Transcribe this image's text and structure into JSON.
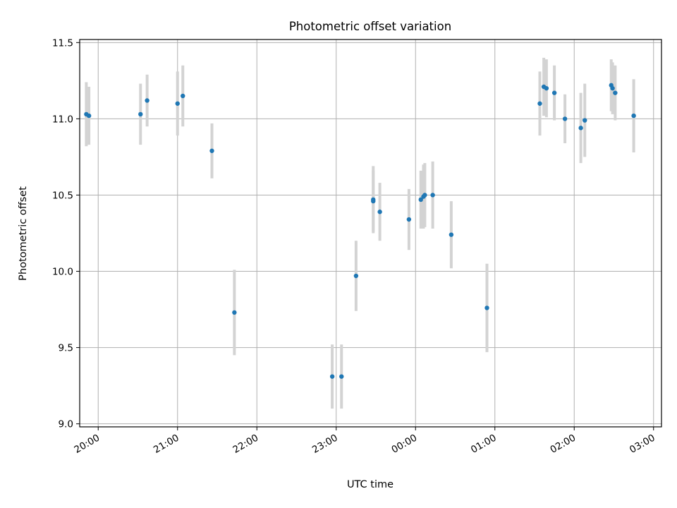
{
  "chart_data": {
    "type": "scatter",
    "title": "Photometric offset variation",
    "xlabel": "UTC time",
    "ylabel": "Photometric offset",
    "grid": true,
    "x_ticks": [
      "20:00",
      "21:00",
      "22:00",
      "23:00",
      "00:00",
      "01:00",
      "02:00",
      "03:00"
    ],
    "y_ticks": [
      "9.0",
      "9.5",
      "10.0",
      "10.5",
      "11.0",
      "11.5"
    ],
    "ylim": [
      8.98,
      11.52
    ],
    "xlim": [
      "19:46",
      "03:06"
    ],
    "colors": {
      "points": "#1f77b4",
      "errorbars": "#d3d3d3",
      "grid": "#b0b0b0"
    },
    "points": [
      {
        "x": "19:51",
        "y": 11.03,
        "yerr": 0.21
      },
      {
        "x": "19:53",
        "y": 11.02,
        "yerr": 0.19
      },
      {
        "x": "20:32",
        "y": 11.03,
        "yerr": 0.2
      },
      {
        "x": "20:37",
        "y": 11.12,
        "yerr": 0.17
      },
      {
        "x": "21:00",
        "y": 11.1,
        "yerr": 0.21
      },
      {
        "x": "21:04",
        "y": 11.15,
        "yerr": 0.2
      },
      {
        "x": "21:26",
        "y": 10.79,
        "yerr": 0.18
      },
      {
        "x": "21:43",
        "y": 9.73,
        "yerr": 0.28
      },
      {
        "x": "22:57",
        "y": 9.31,
        "yerr": 0.21
      },
      {
        "x": "23:04",
        "y": 9.31,
        "yerr": 0.21
      },
      {
        "x": "23:15",
        "y": 9.97,
        "yerr": 0.23
      },
      {
        "x": "23:28",
        "y": 10.47,
        "yerr": 0.22
      },
      {
        "x": "23:28",
        "y": 10.46,
        "yerr": 0.2
      },
      {
        "x": "23:33",
        "y": 10.39,
        "yerr": 0.19
      },
      {
        "x": "23:55",
        "y": 10.34,
        "yerr": 0.2
      },
      {
        "x": "00:04",
        "y": 10.47,
        "yerr": 0.19
      },
      {
        "x": "00:06",
        "y": 10.49,
        "yerr": 0.21
      },
      {
        "x": "00:07",
        "y": 10.5,
        "yerr": 0.21
      },
      {
        "x": "00:13",
        "y": 10.5,
        "yerr": 0.22
      },
      {
        "x": "00:27",
        "y": 10.24,
        "yerr": 0.22
      },
      {
        "x": "00:54",
        "y": 9.76,
        "yerr": 0.29
      },
      {
        "x": "01:34",
        "y": 11.1,
        "yerr": 0.21
      },
      {
        "x": "01:37",
        "y": 11.21,
        "yerr": 0.19
      },
      {
        "x": "01:39",
        "y": 11.2,
        "yerr": 0.19
      },
      {
        "x": "01:45",
        "y": 11.17,
        "yerr": 0.18
      },
      {
        "x": "01:53",
        "y": 11.0,
        "yerr": 0.16
      },
      {
        "x": "02:05",
        "y": 10.94,
        "yerr": 0.23
      },
      {
        "x": "02:08",
        "y": 10.99,
        "yerr": 0.24
      },
      {
        "x": "02:28",
        "y": 11.22,
        "yerr": 0.17
      },
      {
        "x": "02:29",
        "y": 11.2,
        "yerr": 0.17
      },
      {
        "x": "02:31",
        "y": 11.17,
        "yerr": 0.18
      },
      {
        "x": "02:45",
        "y": 11.02,
        "yerr": 0.24
      }
    ]
  }
}
